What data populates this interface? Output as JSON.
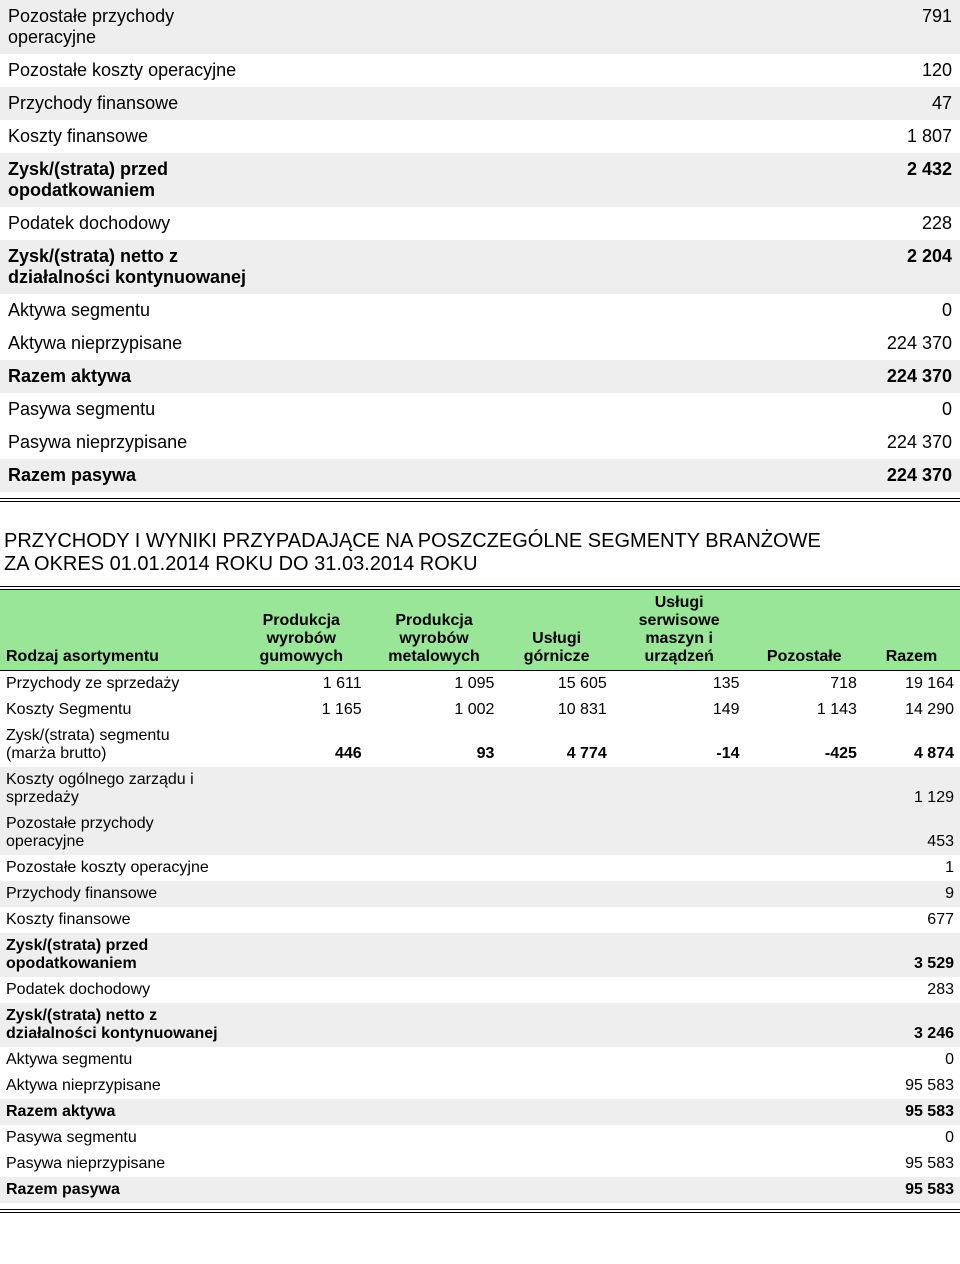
{
  "table1_rows": [
    {
      "label": "Pozostałe przychody operacyjne",
      "value": "791",
      "shaded": true,
      "bold": false,
      "label_width": "narrow"
    },
    {
      "label": "Pozostałe koszty operacyjne",
      "value": "120",
      "shaded": false,
      "bold": false
    },
    {
      "label": "Przychody finansowe",
      "value": "47",
      "shaded": true,
      "bold": false
    },
    {
      "label": "Koszty finansowe",
      "value": "1 807",
      "shaded": false,
      "bold": false
    },
    {
      "label": "Zysk/(strata) przed opodatkowaniem",
      "value": "2 432",
      "shaded": true,
      "bold": true,
      "label_width": "narrow"
    },
    {
      "label": "Podatek dochodowy",
      "value": "228",
      "shaded": false,
      "bold": false
    },
    {
      "label": "Zysk/(strata) netto z działalności kontynuowanej",
      "value": "2 204",
      "shaded": true,
      "bold": true,
      "label_width": "mid"
    },
    {
      "label": "Aktywa segmentu",
      "value": "0",
      "shaded": false,
      "bold": false
    },
    {
      "label": "Aktywa nieprzypisane",
      "value": "224 370",
      "shaded": false,
      "bold": false
    },
    {
      "label": "Razem aktywa",
      "value": "224 370",
      "shaded": true,
      "bold": true
    },
    {
      "label": "Pasywa segmentu",
      "value": "0",
      "shaded": false,
      "bold": false
    },
    {
      "label": "Pasywa nieprzypisane",
      "value": "224 370",
      "shaded": false,
      "bold": false
    },
    {
      "label": "Razem pasywa",
      "value": "224 370",
      "shaded": true,
      "bold": true
    }
  ],
  "section_title_line1": "PRZYCHODY I WYNIKI PRZYPADAJĄCE NA POSZCZEGÓLNE SEGMENTY BRANŻOWE",
  "section_title_line2": "ZA OKRES 01.01.2014 ROKU DO 31.03.2014 ROKU",
  "table2_headers": [
    "Rodzaj asortymentu",
    "Produkcja wyrobów gumowych",
    "Produkcja wyrobów metalowych",
    "Usługi górnicze",
    "Usługi serwisowe maszyn i urządzeń",
    "Pozostałe",
    "Razem"
  ],
  "table2_col_widths": [
    "230",
    "130",
    "130",
    "110",
    "130",
    "115",
    "95"
  ],
  "table2_rows": [
    {
      "label": "Przychody ze sprzedaży",
      "values": [
        "1 611",
        "1 095",
        "15 605",
        "135",
        "718",
        "19 164"
      ],
      "shaded": false,
      "bold": false
    },
    {
      "label": "Koszty Segmentu",
      "values": [
        "1 165",
        "1 002",
        "10 831",
        "149",
        "1 143",
        "14 290"
      ],
      "shaded": false,
      "bold": false
    },
    {
      "label": "Zysk/(strata) segmentu (marża brutto)",
      "values": [
        "446",
        "93",
        "4 774",
        "-14",
        "-425",
        "4 874"
      ],
      "shaded": false,
      "bold": true,
      "label_width": "narrow",
      "label_bold": false
    },
    {
      "label": "Koszty ogólnego zarządu i sprzedaży",
      "values": [
        "",
        "",
        "",
        "",
        "",
        "1 129"
      ],
      "shaded": true,
      "bold": false,
      "label_width": "mid"
    },
    {
      "label": "Pozostałe przychody operacyjne",
      "values": [
        "",
        "",
        "",
        "",
        "",
        "453"
      ],
      "shaded": true,
      "bold": false,
      "label_width": "narrow"
    },
    {
      "label": "Pozostałe koszty operacyjne",
      "values": [
        "",
        "",
        "",
        "",
        "",
        "1"
      ],
      "shaded": false,
      "bold": false
    },
    {
      "label": "Przychody finansowe",
      "values": [
        "",
        "",
        "",
        "",
        "",
        "9"
      ],
      "shaded": true,
      "bold": false
    },
    {
      "label": "Koszty finansowe",
      "values": [
        "",
        "",
        "",
        "",
        "",
        "677"
      ],
      "shaded": false,
      "bold": false
    },
    {
      "label": "Zysk/(strata) przed opodatkowaniem",
      "values": [
        "",
        "",
        "",
        "",
        "",
        "3 529"
      ],
      "shaded": true,
      "bold": true,
      "label_width": "narrow"
    },
    {
      "label": "Podatek dochodowy",
      "values": [
        "",
        "",
        "",
        "",
        "",
        "283"
      ],
      "shaded": false,
      "bold": false
    },
    {
      "label": "Zysk/(strata) netto z działalności kontynuowanej",
      "values": [
        "",
        "",
        "",
        "",
        "",
        "3 246"
      ],
      "shaded": true,
      "bold": true,
      "label_width": "mid"
    },
    {
      "label": "Aktywa segmentu",
      "values": [
        "",
        "",
        "",
        "",
        "",
        "0"
      ],
      "shaded": false,
      "bold": false
    },
    {
      "label": "Aktywa nieprzypisane",
      "values": [
        "",
        "",
        "",
        "",
        "",
        "95 583"
      ],
      "shaded": false,
      "bold": false
    },
    {
      "label": "Razem aktywa",
      "values": [
        "",
        "",
        "",
        "",
        "",
        "95 583"
      ],
      "shaded": true,
      "bold": true
    },
    {
      "label": "Pasywa segmentu",
      "values": [
        "",
        "",
        "",
        "",
        "",
        "0"
      ],
      "shaded": false,
      "bold": false
    },
    {
      "label": "Pasywa nieprzypisane",
      "values": [
        "",
        "",
        "",
        "",
        "",
        "95 583"
      ],
      "shaded": false,
      "bold": false
    },
    {
      "label": "Razem pasywa",
      "values": [
        "",
        "",
        "",
        "",
        "",
        "95 583"
      ],
      "shaded": true,
      "bold": true
    }
  ]
}
